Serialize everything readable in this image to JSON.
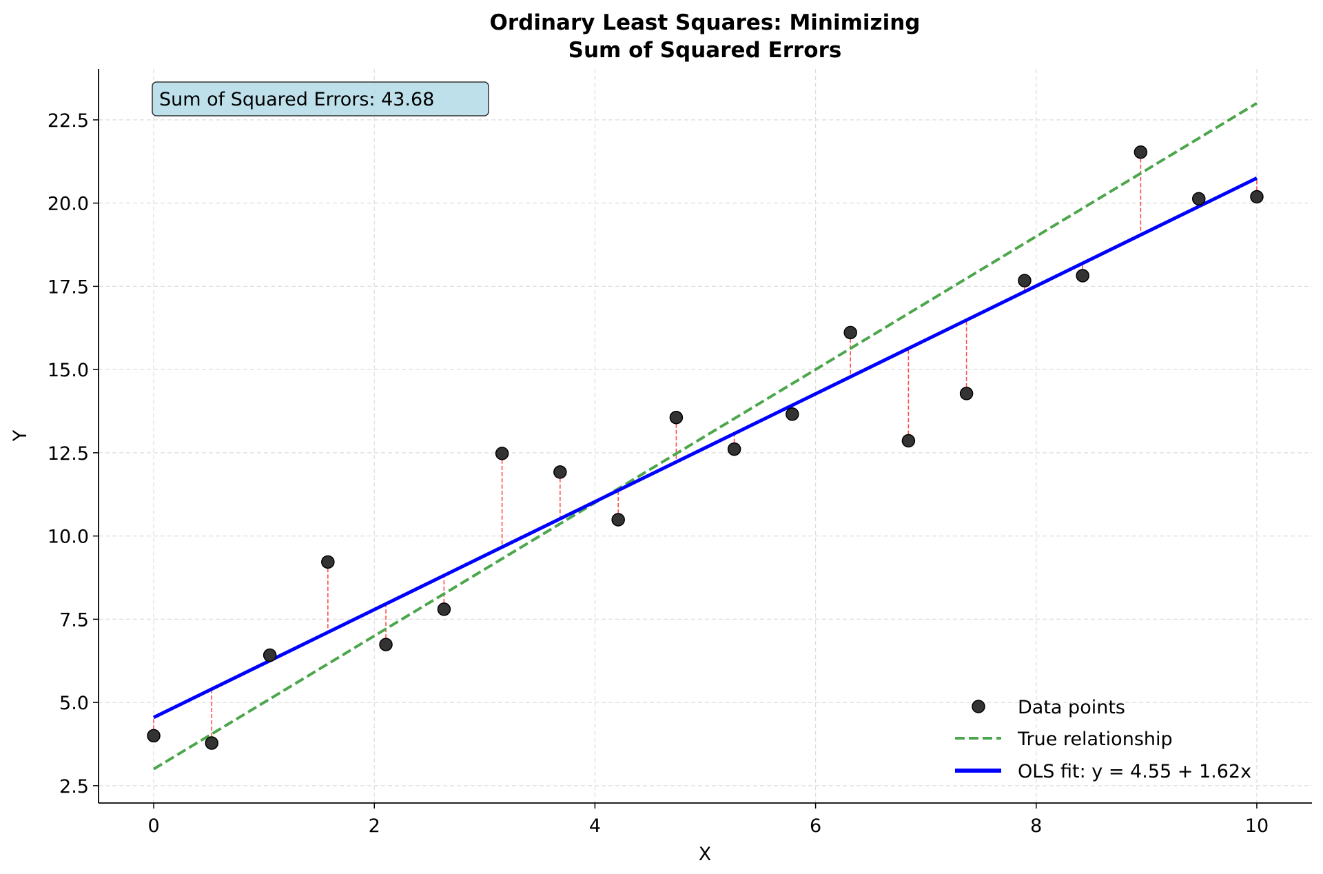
{
  "chart_data": {
    "type": "scatter",
    "title": "Ordinary Least Squares: Minimizing\nSum of Squared Errors",
    "title_lines": [
      "Ordinary Least Squares: Minimizing",
      "Sum of Squared Errors"
    ],
    "xlabel": "X",
    "ylabel": "Y",
    "xlim": [
      -0.5,
      10.5
    ],
    "ylim": [
      1.98,
      24.03
    ],
    "xticks": [
      0,
      2,
      4,
      6,
      8,
      10
    ],
    "xtick_labels": [
      "0",
      "2",
      "4",
      "6",
      "8",
      "10"
    ],
    "yticks": [
      2.5,
      5.0,
      7.5,
      10.0,
      12.5,
      15.0,
      17.5,
      20.0,
      22.5
    ],
    "ytick_labels": [
      "2.5",
      "5.0",
      "7.5",
      "10.0",
      "12.5",
      "15.0",
      "17.5",
      "20.0",
      "22.5"
    ],
    "grid": true,
    "legend_position": "bottom-right",
    "annotation": "Sum of Squared Errors: 43.68",
    "series": [
      {
        "name": "Data points",
        "type": "scatter",
        "color": "#333333",
        "x": [
          0,
          0.526,
          1.053,
          1.579,
          2.105,
          2.632,
          3.158,
          3.684,
          4.211,
          4.737,
          5.263,
          5.789,
          6.316,
          6.842,
          7.368,
          7.895,
          8.421,
          8.947,
          9.474,
          10
        ],
        "y": [
          4.0,
          3.78,
          6.42,
          9.22,
          6.74,
          7.8,
          12.48,
          11.92,
          10.49,
          13.56,
          12.61,
          13.66,
          16.11,
          12.86,
          14.28,
          17.67,
          17.82,
          21.53,
          20.13,
          20.19
        ]
      },
      {
        "name": "True relationship",
        "type": "line",
        "style": "dashed",
        "color": "#4ca64c",
        "x": [
          0,
          10
        ],
        "y": [
          3.0,
          23.0
        ]
      },
      {
        "name": "OLS fit: y = 4.55 + 1.62x",
        "type": "line",
        "color": "#0000ff",
        "intercept": 4.55,
        "slope": 1.62
      }
    ],
    "residual_color": "#ff4d4d"
  }
}
